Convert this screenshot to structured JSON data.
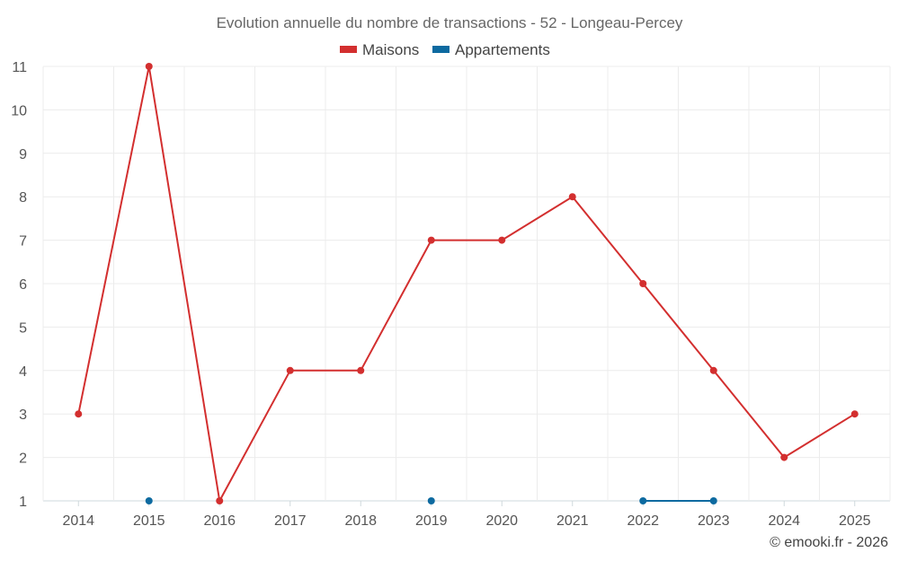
{
  "chart_data": {
    "type": "line",
    "title": "Evolution annuelle du nombre de transactions - 52 - Longeau-Percey",
    "categories": [
      "2014",
      "2015",
      "2016",
      "2017",
      "2018",
      "2019",
      "2020",
      "2021",
      "2022",
      "2023",
      "2024",
      "2025"
    ],
    "series": [
      {
        "name": "Maisons",
        "color": "#d32f2f",
        "values": [
          3,
          11,
          1,
          4,
          4,
          7,
          7,
          8,
          6,
          4,
          2,
          3
        ]
      },
      {
        "name": "Appartements",
        "color": "#0d6aa0",
        "values": [
          null,
          1,
          null,
          null,
          null,
          1,
          null,
          null,
          1,
          1,
          null,
          null
        ]
      }
    ],
    "yticks": [
      "1",
      "2",
      "3",
      "4",
      "5",
      "6",
      "7",
      "8",
      "9",
      "10",
      "11"
    ],
    "ylim": [
      1,
      11
    ],
    "legend": "top-center",
    "grid": true,
    "credit": "© emooki.fr - 2026"
  }
}
